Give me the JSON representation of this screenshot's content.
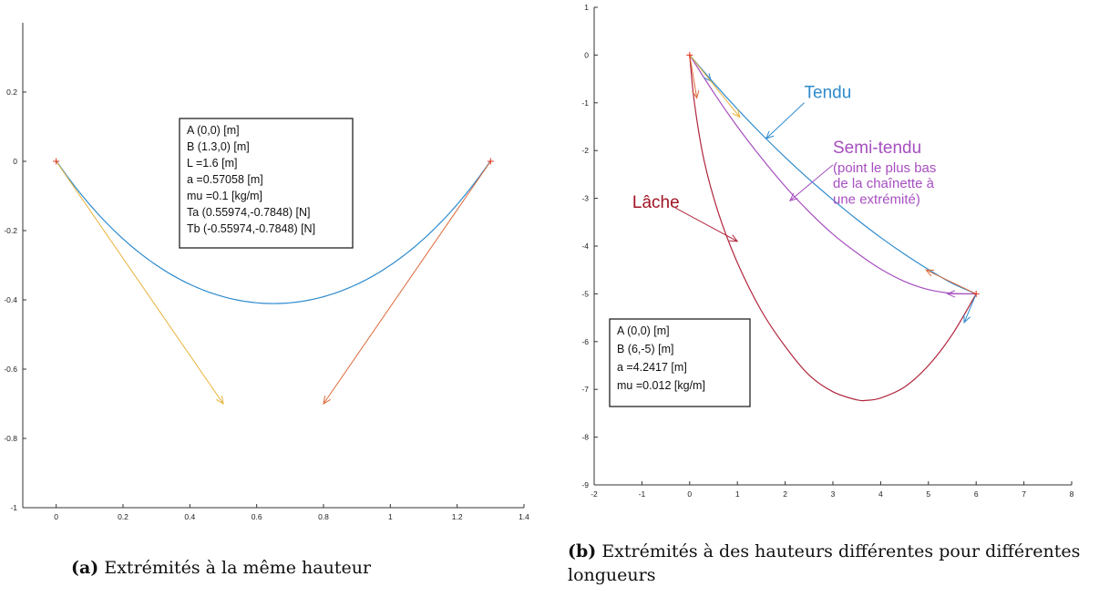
{
  "chart_data": [
    {
      "type": "line",
      "caption_tag": "(a)",
      "caption": "Extrémités à la même hauteur",
      "xlim": [
        -0.1,
        1.4
      ],
      "ylim": [
        -1,
        0.4
      ],
      "xticks": [
        {
          "v": 0,
          "label": "0"
        },
        {
          "v": 0.2,
          "label": "0.2"
        },
        {
          "v": 0.4,
          "label": "0.4"
        },
        {
          "v": 0.6,
          "label": "0.6"
        },
        {
          "v": 0.8,
          "label": "0.8"
        },
        {
          "v": 1,
          "label": "1"
        },
        {
          "v": 1.2,
          "label": "1.2"
        },
        {
          "v": 1.4,
          "label": "1.4"
        }
      ],
      "yticks": [
        {
          "v": 0.2,
          "label": "0.2"
        },
        {
          "v": 0,
          "label": "0"
        },
        {
          "v": -0.2,
          "label": "-0.2"
        },
        {
          "v": -0.4,
          "label": "-0.4"
        },
        {
          "v": -0.6,
          "label": "-0.6"
        },
        {
          "v": -0.8,
          "label": "-0.8"
        },
        {
          "v": -1,
          "label": "-1"
        }
      ],
      "curves": [
        {
          "name": "chainette",
          "kind": "catenary",
          "a": 0.57058,
          "x0": 0.65,
          "yoffset": -0.4107,
          "from": 0,
          "to": 1.3,
          "color": "#2e8bce"
        }
      ],
      "arrows": [
        {
          "name": "tension-a",
          "x1": 0,
          "y1": 0,
          "x2": 0.5,
          "y2": -0.7,
          "color": "#e8b23a"
        },
        {
          "name": "tension-b",
          "x1": 1.3,
          "y1": 0,
          "x2": 0.8,
          "y2": -0.7,
          "color": "#dd6a3a"
        }
      ],
      "points": [
        {
          "x": 0,
          "y": 0,
          "color": "#e0321e"
        },
        {
          "x": 1.3,
          "y": 0,
          "color": "#e0321e"
        }
      ],
      "infobox": [
        "A (0,0) [m]",
        "B (1.3,0) [m]",
        "L =1.6 [m]",
        "a =0.57058 [m]",
        "mu =0.1 [kg/m]",
        "Ta (0.55974,-0.7848) [N]",
        "Tb (-0.55974,-0.7848) [N]"
      ]
    },
    {
      "type": "line",
      "caption_tag": "(b)",
      "caption": "Extrémités à des hauteurs différentes pour différentes longueurs",
      "xlim": [
        -2,
        8
      ],
      "ylim": [
        -9,
        1
      ],
      "xticks": [
        {
          "v": -2,
          "label": "-2"
        },
        {
          "v": -1,
          "label": "-1"
        },
        {
          "v": 0,
          "label": "0"
        },
        {
          "v": 1,
          "label": "1"
        },
        {
          "v": 2,
          "label": "2"
        },
        {
          "v": 3,
          "label": "3"
        },
        {
          "v": 4,
          "label": "4"
        },
        {
          "v": 5,
          "label": "5"
        },
        {
          "v": 6,
          "label": "6"
        },
        {
          "v": 7,
          "label": "7"
        },
        {
          "v": 8,
          "label": "8"
        }
      ],
      "yticks": [
        {
          "v": 1,
          "label": "1"
        },
        {
          "v": 0,
          "label": "0"
        },
        {
          "v": -1,
          "label": "-1"
        },
        {
          "v": -2,
          "label": "-2"
        },
        {
          "v": -3,
          "label": "-3"
        },
        {
          "v": -4,
          "label": "-4"
        },
        {
          "v": -5,
          "label": "-5"
        },
        {
          "v": -6,
          "label": "-6"
        },
        {
          "v": -7,
          "label": "-7"
        },
        {
          "v": -8,
          "label": "-8"
        },
        {
          "v": -9,
          "label": "-9"
        }
      ],
      "curves": [
        {
          "name": "tendu",
          "kind": "points",
          "color": "#2e8bce",
          "x": [
            0,
            0.5,
            1,
            1.5,
            2,
            2.5,
            3,
            3.5,
            4,
            4.5,
            5,
            5.5,
            6
          ],
          "y": [
            0,
            -0.58,
            -1.13,
            -1.65,
            -2.14,
            -2.6,
            -3.03,
            -3.44,
            -3.82,
            -4.17,
            -4.49,
            -4.78,
            -5.0
          ]
        },
        {
          "name": "semi-tendu",
          "kind": "points",
          "color": "#a64fbf",
          "x": [
            0,
            0.5,
            1,
            1.5,
            2,
            2.5,
            3,
            3.5,
            4,
            4.5,
            5,
            5.5,
            6
          ],
          "y": [
            0,
            -0.78,
            -1.5,
            -2.15,
            -2.75,
            -3.28,
            -3.75,
            -4.14,
            -4.48,
            -4.74,
            -4.91,
            -4.99,
            -5.0
          ]
        },
        {
          "name": "lache",
          "kind": "points",
          "color": "#b0263e",
          "x": [
            0,
            0.1,
            0.3,
            0.6,
            1.0,
            1.5,
            2.0,
            2.5,
            3.0,
            3.5,
            3.7,
            4.0,
            4.5,
            5.0,
            5.5,
            6.0
          ],
          "y": [
            0,
            -1.0,
            -2.2,
            -3.3,
            -4.35,
            -5.35,
            -6.1,
            -6.7,
            -7.05,
            -7.22,
            -7.23,
            -7.18,
            -6.95,
            -6.5,
            -5.85,
            -5.0
          ]
        }
      ],
      "arrows": [
        {
          "name": "tendu-pointer",
          "x1": 2.4,
          "y1": -1.0,
          "x2": 1.6,
          "y2": -1.75,
          "color": "#2e8bce"
        },
        {
          "name": "semi-tendu-pointer",
          "x1": 3.0,
          "y1": -2.3,
          "x2": 2.1,
          "y2": -3.05,
          "color": "#a64fbf"
        },
        {
          "name": "lache-pointer",
          "x1": -0.3,
          "y1": -3.2,
          "x2": 1.0,
          "y2": -3.9,
          "color": "#b0263e"
        },
        {
          "name": "ta-tendu",
          "x1": 0,
          "y1": 0,
          "x2": 0.45,
          "y2": -0.55,
          "color": "#2e8bce"
        },
        {
          "name": "ta-semi",
          "x1": 0,
          "y1": 0,
          "x2": 1.05,
          "y2": -1.3,
          "color": "#e8b23a"
        },
        {
          "name": "ta-lache",
          "x1": 0,
          "y1": 0,
          "x2": 0.15,
          "y2": -0.9,
          "color": "#dd6a3a"
        },
        {
          "name": "tb-tendu",
          "x1": 6,
          "y1": -5,
          "x2": 4.95,
          "y2": -4.5,
          "color": "#dd6a3a"
        },
        {
          "name": "tb-semi",
          "x1": 6,
          "y1": -5,
          "x2": 5.4,
          "y2": -5.0,
          "color": "#a64fbf"
        },
        {
          "name": "tb-lache",
          "x1": 6,
          "y1": -5,
          "x2": 5.75,
          "y2": -5.6,
          "color": "#2e8bce"
        }
      ],
      "points": [
        {
          "x": 0,
          "y": 0,
          "color": "#e0321e"
        },
        {
          "x": 6,
          "y": -5,
          "color": "#e0321e"
        }
      ],
      "annotations": [
        {
          "lines": [
            "Tendu"
          ],
          "x": 2.4,
          "y": -0.9,
          "color": "#2e8bce",
          "size": 19
        },
        {
          "lines": [
            "Semi-tendu"
          ],
          "x": 3.0,
          "y": -2.05,
          "color": "#a64fbf",
          "size": 19
        },
        {
          "lines": [
            "(point le plus bas",
            "de la chaînette à",
            "une extrémité)"
          ],
          "x": 3.0,
          "y": -2.45,
          "color": "#a64fbf",
          "size": 15
        },
        {
          "lines": [
            "Lâche"
          ],
          "x": -1.2,
          "y": -3.2,
          "color": "#a01424",
          "size": 19
        }
      ],
      "infobox": [
        "A (0,0) [m]",
        "B (6,-5) [m]",
        "a =4.2417 [m]",
        "mu =0.012 [kg/m]"
      ]
    }
  ]
}
